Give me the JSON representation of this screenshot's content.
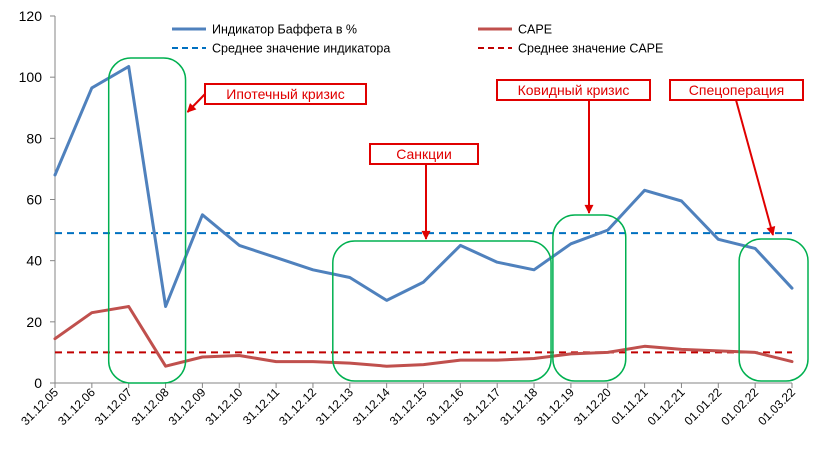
{
  "chart_data": {
    "type": "line",
    "title": "",
    "xlabel": "",
    "ylabel": "",
    "ylim": [
      0,
      120
    ],
    "yticks": [
      0,
      20,
      40,
      60,
      80,
      100,
      120
    ],
    "categories": [
      "31.12.05",
      "31.12.06",
      "31.12.07",
      "31.12.08",
      "31.12.09",
      "31.12.10",
      "31.12.11",
      "31.12.12",
      "31.12.13",
      "31.12.14",
      "31.12.15",
      "31.12.16",
      "31.12.17",
      "31.12.18",
      "31.12.19",
      "31.12.20",
      "01.11.21",
      "01.12.21",
      "01.01.22",
      "01.02.22",
      "01.03.22"
    ],
    "series": [
      {
        "name": "Индикатор Баффета в %",
        "color": "#4f81bd",
        "values": [
          68,
          96.5,
          103.5,
          25,
          55,
          45,
          41,
          37,
          34.5,
          27,
          33,
          45,
          39.5,
          37,
          45.5,
          50,
          63,
          59.5,
          47,
          44,
          31
        ]
      },
      {
        "name": "CAPE",
        "color": "#c0504d",
        "values": [
          14.5,
          23,
          25,
          5.5,
          8.5,
          9,
          7,
          7,
          6.5,
          5.5,
          6,
          7.5,
          7.5,
          8,
          9.5,
          10,
          12,
          11,
          10.5,
          10,
          7
        ]
      }
    ],
    "reference_lines": [
      {
        "name": "Среднее значение индикатора",
        "value": 49,
        "color": "#0070c0",
        "style": "dashed"
      },
      {
        "name": "Среднее значение CAPE",
        "value": 10,
        "color": "#c00000",
        "style": "dashed"
      }
    ],
    "annotations": [
      {
        "label": "Ипотечный кризис",
        "from": 2,
        "to": 3
      },
      {
        "label": "Санкции",
        "from": 8,
        "to": 13
      },
      {
        "label": "Ковидный кризис",
        "from": 14,
        "to": 15
      },
      {
        "label": "Спецоперация",
        "from": 19,
        "to": 20
      }
    ],
    "grid": false,
    "legend": "top"
  },
  "colors": {
    "annotation": "#e00000",
    "highlight": "#00b050",
    "axis": "#868686"
  }
}
